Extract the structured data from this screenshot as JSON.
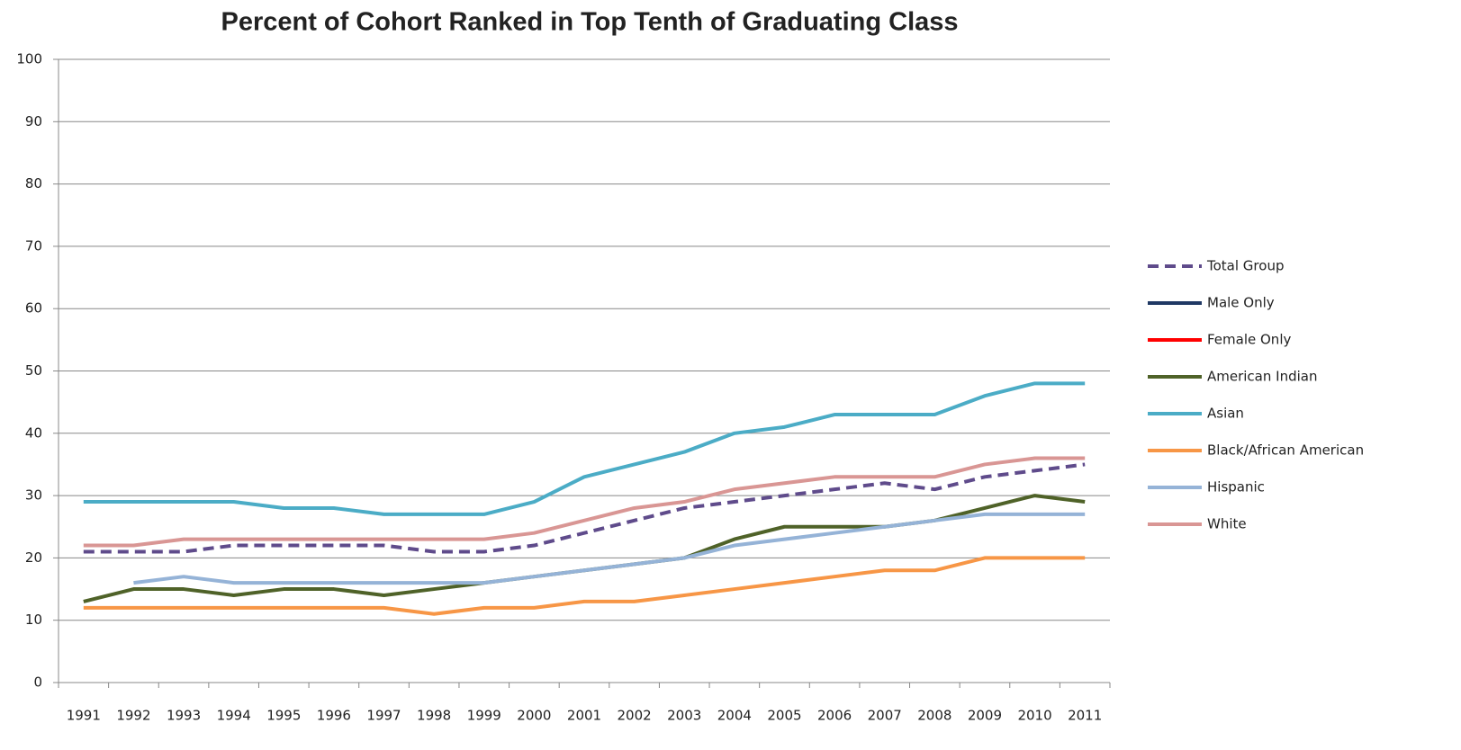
{
  "chart_data": {
    "type": "line",
    "title": "Percent of Cohort Ranked in Top Tenth of Graduating Class",
    "categories": [
      "1991",
      "1992",
      "1993",
      "1994",
      "1995",
      "1996",
      "1997",
      "1998",
      "1999",
      "2000",
      "2001",
      "2002",
      "2003",
      "2004",
      "2005",
      "2006",
      "2007",
      "2008",
      "2009",
      "2010",
      "2011"
    ],
    "series": [
      {
        "name": "Total Group",
        "color": "#5f4b8b",
        "dashed": true,
        "values": [
          21,
          21,
          21,
          22,
          22,
          22,
          22,
          21,
          21,
          22,
          24,
          26,
          28,
          29,
          30,
          31,
          32,
          31,
          33,
          34,
          35
        ]
      },
      {
        "name": "Male Only",
        "color": "#1f3864",
        "values": [
          null,
          null,
          null,
          null,
          null,
          null,
          null,
          null,
          null,
          null,
          null,
          null,
          null,
          null,
          null,
          null,
          null,
          null,
          null,
          null,
          null
        ]
      },
      {
        "name": "Female Only",
        "color": "#ff0000",
        "values": [
          null,
          null,
          null,
          null,
          null,
          null,
          null,
          null,
          null,
          null,
          null,
          null,
          null,
          null,
          null,
          null,
          null,
          null,
          null,
          null,
          null
        ]
      },
      {
        "name": "American Indian",
        "color": "#4f6228",
        "values": [
          13,
          15,
          15,
          14,
          15,
          15,
          14,
          15,
          16,
          17,
          18,
          19,
          20,
          23,
          25,
          25,
          25,
          26,
          28,
          30,
          29
        ]
      },
      {
        "name": "Asian",
        "color": "#4bacc6",
        "values": [
          29,
          29,
          29,
          29,
          28,
          28,
          27,
          27,
          27,
          29,
          33,
          35,
          37,
          40,
          41,
          43,
          43,
          43,
          46,
          48,
          48
        ]
      },
      {
        "name": "Black/African American",
        "color": "#f79646",
        "values": [
          12,
          12,
          12,
          12,
          12,
          12,
          12,
          11,
          12,
          12,
          13,
          13,
          14,
          15,
          16,
          17,
          18,
          18,
          20,
          20,
          20
        ]
      },
      {
        "name": "Hispanic",
        "color": "#95b3d7",
        "values": [
          null,
          16,
          17,
          16,
          16,
          16,
          16,
          16,
          16,
          17,
          18,
          19,
          20,
          22,
          23,
          24,
          25,
          26,
          27,
          27,
          27
        ]
      },
      {
        "name": "White",
        "color": "#d99694",
        "values": [
          22,
          22,
          23,
          23,
          23,
          23,
          23,
          23,
          23,
          24,
          26,
          28,
          29,
          31,
          32,
          33,
          33,
          33,
          35,
          36,
          36
        ]
      }
    ],
    "ylim": [
      0,
      100
    ],
    "yticks": [
      0,
      10,
      20,
      30,
      40,
      50,
      60,
      70,
      80,
      90,
      100
    ],
    "grid": true,
    "legend": "right"
  }
}
